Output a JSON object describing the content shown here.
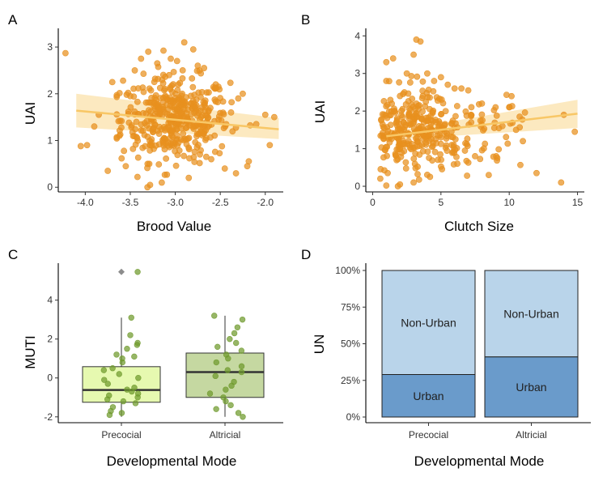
{
  "colors": {
    "orange": "#e8901e",
    "ribbon": "#fbe3b0",
    "trend": "#f8c766",
    "green_point": "#6f9a2c",
    "box_precocial": "#e6f9b0",
    "box_altricial": "#c5d8a1",
    "non_urban": "#b9d4ea",
    "urban": "#6a9bcb",
    "outlier": "#8c8c8c"
  },
  "chart_data": [
    {
      "panel": "A",
      "type": "scatter",
      "xlabel": "Brood Value",
      "ylabel": "UAI",
      "xlim": [
        -4.3,
        -1.8
      ],
      "ylim": [
        -0.1,
        3.4
      ],
      "xticks": [
        -4.0,
        -3.5,
        -3.0,
        -2.5,
        -2.0
      ],
      "xtick_labels": [
        "-4.0",
        "-3.5",
        "-3.0",
        "-2.5",
        "-2.0"
      ],
      "yticks": [
        0,
        1,
        2,
        3
      ],
      "ytick_labels": [
        "0",
        "1",
        "2",
        "3"
      ],
      "trend": {
        "x": [
          -4.1,
          -1.85
        ],
        "y": [
          1.64,
          1.24
        ],
        "lower": [
          1.28,
          1.03
        ],
        "upper": [
          2.0,
          1.48
        ]
      },
      "points": [
        [
          -4.22,
          2.87
        ],
        [
          -4.05,
          0.88
        ],
        [
          -3.98,
          0.9
        ],
        [
          -3.85,
          1.55
        ],
        [
          -3.75,
          0.35
        ],
        [
          -3.7,
          2.25
        ],
        [
          -3.62,
          1.1
        ],
        [
          -3.58,
          2.28
        ],
        [
          -3.55,
          0.45
        ],
        [
          -3.5,
          1.95
        ],
        [
          -3.45,
          2.5
        ],
        [
          -3.42,
          0.22
        ],
        [
          -3.38,
          2.75
        ],
        [
          -3.3,
          2.9
        ],
        [
          -3.28,
          0.05
        ],
        [
          -3.2,
          2.65
        ],
        [
          -3.15,
          0.1
        ],
        [
          -3.05,
          2.75
        ],
        [
          -2.98,
          2.7
        ],
        [
          -2.9,
          3.1
        ],
        [
          -2.85,
          0.2
        ],
        [
          -2.8,
          2.95
        ],
        [
          -2.75,
          2.6
        ],
        [
          -2.68,
          2.55
        ],
        [
          -2.6,
          0.6
        ],
        [
          -2.55,
          2.2
        ],
        [
          -2.45,
          0.4
        ],
        [
          -2.38,
          1.6
        ],
        [
          -2.3,
          1.9
        ],
        [
          -2.2,
          0.45
        ],
        [
          -2.1,
          1.35
        ],
        [
          -2.0,
          1.55
        ],
        [
          -1.95,
          0.9
        ],
        [
          -1.9,
          1.5
        ],
        [
          -2.25,
          2.0
        ],
        [
          -3.9,
          1.3
        ]
      ]
    },
    {
      "panel": "B",
      "type": "scatter",
      "xlabel": "Clutch Size",
      "ylabel": "UAI",
      "xlim": [
        -0.5,
        15.5
      ],
      "ylim": [
        -0.15,
        4.2
      ],
      "xticks": [
        0,
        5,
        10,
        15
      ],
      "xtick_labels": [
        "0",
        "5",
        "10",
        "15"
      ],
      "yticks": [
        0,
        1,
        2,
        3,
        4
      ],
      "ytick_labels": [
        "0",
        "1",
        "2",
        "3",
        "4"
      ],
      "trend": {
        "x": [
          1,
          15
        ],
        "y": [
          1.33,
          1.93
        ],
        "lower": [
          1.23,
          1.55
        ],
        "upper": [
          1.43,
          2.3
        ]
      },
      "points": [
        [
          1,
          3.3
        ],
        [
          1,
          2.8
        ],
        [
          1,
          0.02
        ],
        [
          1.1,
          0.35
        ],
        [
          1.5,
          3.4
        ],
        [
          2,
          2.4
        ],
        [
          2,
          0.05
        ],
        [
          2.5,
          3.0
        ],
        [
          3,
          3.5
        ],
        [
          3.2,
          3.9
        ],
        [
          3.5,
          3.85
        ],
        [
          3,
          0.1
        ],
        [
          4,
          3.0
        ],
        [
          4.5,
          2.8
        ],
        [
          5,
          2.9
        ],
        [
          5.5,
          2.7
        ],
        [
          6,
          2.6
        ],
        [
          6.5,
          2.6
        ],
        [
          7,
          2.55
        ],
        [
          7.5,
          0.8
        ],
        [
          8,
          2.2
        ],
        [
          8.5,
          0.3
        ],
        [
          9,
          2.1
        ],
        [
          10,
          2.1
        ],
        [
          10.5,
          1.5
        ],
        [
          11,
          1.2
        ],
        [
          12,
          0.35
        ],
        [
          13.8,
          0.1
        ],
        [
          14,
          1.9
        ],
        [
          14.8,
          1.45
        ],
        [
          6.2,
          0.6
        ],
        [
          7.2,
          1.9
        ],
        [
          9.5,
          1.6
        ],
        [
          4.2,
          0.25
        ]
      ]
    },
    {
      "panel": "C",
      "type": "box",
      "xlabel": "Developmental Mode",
      "ylabel": "MUTI",
      "ylim": [
        -2.3,
        5.9
      ],
      "yticks": [
        -2,
        0,
        2,
        4
      ],
      "ytick_labels": [
        "-2",
        "0",
        "2",
        "4"
      ],
      "categories": [
        "Precocial",
        "Altricial"
      ],
      "boxes": [
        {
          "category": "Precocial",
          "q1": -1.25,
          "median": -0.62,
          "q3": 0.58,
          "whisker_low": -2.0,
          "whisker_high": 3.1,
          "outliers": [
            5.45
          ]
        },
        {
          "category": "Altricial",
          "q1": -1.0,
          "median": 0.3,
          "q3": 1.28,
          "whisker_low": -2.0,
          "whisker_high": 3.2,
          "outliers": []
        }
      ],
      "jitter_points": [
        [
          0,
          5.45
        ],
        [
          0,
          3.1
        ],
        [
          0,
          2.2
        ],
        [
          0,
          1.8
        ],
        [
          0,
          1.7
        ],
        [
          0,
          1.5
        ],
        [
          0,
          1.2
        ],
        [
          0,
          1.1
        ],
        [
          0,
          1.0
        ],
        [
          0,
          0.8
        ],
        [
          0,
          0.5
        ],
        [
          0,
          0.4
        ],
        [
          0,
          0.2
        ],
        [
          0,
          0.0
        ],
        [
          0,
          -0.1
        ],
        [
          0,
          -0.3
        ],
        [
          0,
          -0.5
        ],
        [
          0,
          -0.6
        ],
        [
          0,
          -0.7
        ],
        [
          0,
          -0.8
        ],
        [
          0,
          -0.9
        ],
        [
          0,
          -1.0
        ],
        [
          0,
          -1.1
        ],
        [
          0,
          -1.2
        ],
        [
          0,
          -1.3
        ],
        [
          0,
          -1.5
        ],
        [
          0,
          -1.7
        ],
        [
          0,
          -1.8
        ],
        [
          0,
          -1.9
        ],
        [
          1,
          3.2
        ],
        [
          1,
          3.0
        ],
        [
          1,
          2.6
        ],
        [
          1,
          2.3
        ],
        [
          1,
          2.0
        ],
        [
          1,
          1.8
        ],
        [
          1,
          1.6
        ],
        [
          1,
          1.4
        ],
        [
          1,
          1.2
        ],
        [
          1,
          1.0
        ],
        [
          1,
          0.8
        ],
        [
          1,
          0.6
        ],
        [
          1,
          0.4
        ],
        [
          1,
          0.3
        ],
        [
          1,
          0.1
        ],
        [
          1,
          -0.2
        ],
        [
          1,
          -0.4
        ],
        [
          1,
          -0.6
        ],
        [
          1,
          -0.8
        ],
        [
          1,
          -1.0
        ],
        [
          1,
          -1.2
        ],
        [
          1,
          -1.4
        ],
        [
          1,
          -1.6
        ],
        [
          1,
          -1.8
        ],
        [
          1,
          -2.0
        ]
      ]
    },
    {
      "panel": "D",
      "type": "bar",
      "xlabel": "Developmental Mode",
      "ylabel": "UN",
      "ylim": [
        0,
        1
      ],
      "yticks": [
        0,
        0.25,
        0.5,
        0.75,
        1.0
      ],
      "ytick_labels": [
        "0%",
        "25%",
        "50%",
        "75%",
        "100%"
      ],
      "categories": [
        "Precocial",
        "Altricial"
      ],
      "series": [
        {
          "name": "Urban",
          "values": [
            0.29,
            0.41
          ]
        },
        {
          "name": "Non-Urban",
          "values": [
            0.71,
            0.59
          ]
        }
      ]
    }
  ]
}
